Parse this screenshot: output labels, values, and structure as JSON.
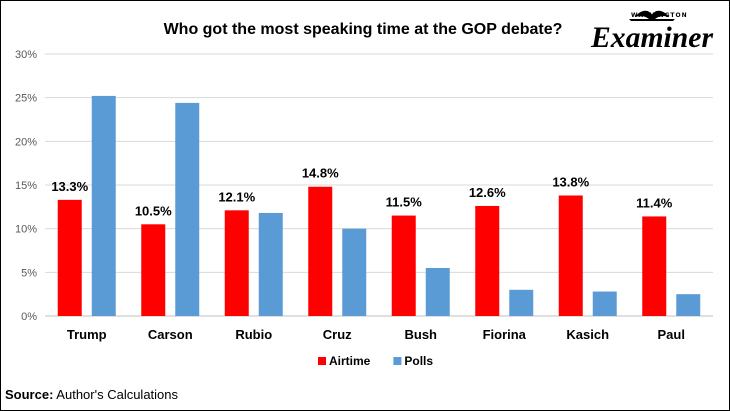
{
  "chart_data": {
    "type": "bar",
    "title": "Who got the most speaking time at the GOP debate?",
    "categories": [
      "Trump",
      "Carson",
      "Rubio",
      "Cruz",
      "Bush",
      "Fiorina",
      "Kasich",
      "Paul"
    ],
    "series": [
      {
        "name": "Airtime",
        "color": "#ff0000",
        "values": [
          13.3,
          10.5,
          12.1,
          14.8,
          11.5,
          12.6,
          13.8,
          11.4
        ],
        "labels": [
          "13.3%",
          "10.5%",
          "12.1%",
          "14.8%",
          "11.5%",
          "12.6%",
          "13.8%",
          "11.4%"
        ]
      },
      {
        "name": "Polls",
        "color": "#5b9bd5",
        "values": [
          25.2,
          24.4,
          11.8,
          10.0,
          5.5,
          3.0,
          2.8,
          2.5
        ]
      }
    ],
    "ylim": [
      0,
      30
    ],
    "yticks": [
      0,
      5,
      10,
      15,
      20,
      25,
      30
    ],
    "ytick_labels": [
      "0%",
      "5%",
      "10%",
      "15%",
      "20%",
      "25%",
      "30%"
    ],
    "grid": true,
    "legend_position": "bottom",
    "xlabel": "",
    "ylabel": ""
  },
  "logo": {
    "small": "WASHINGTON",
    "big": "Examiner"
  },
  "source": {
    "label": "Source:",
    "text": " Author's Calculations"
  }
}
